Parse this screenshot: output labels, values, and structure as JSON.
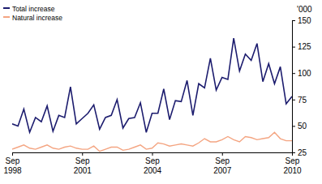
{
  "chart_data": {
    "type": "line",
    "y_label": "'000",
    "categories": [
      "Sep 1998",
      null,
      null,
      null,
      null,
      null,
      null,
      null,
      null,
      null,
      null,
      null,
      "Sep 2001",
      null,
      null,
      null,
      null,
      null,
      null,
      null,
      null,
      null,
      null,
      null,
      "Sep 2004",
      null,
      null,
      null,
      null,
      null,
      null,
      null,
      null,
      null,
      null,
      null,
      "Sep 2007",
      null,
      null,
      null,
      null,
      null,
      null,
      null,
      null,
      null,
      null,
      null,
      "Sep 2010"
    ],
    "series": [
      {
        "name": "Total increase",
        "color": "#1c1c6e",
        "values": [
          52,
          50,
          66,
          44,
          58,
          54,
          69,
          45,
          60,
          58,
          87,
          52,
          57,
          62,
          70,
          47,
          58,
          60,
          75,
          48,
          57,
          58,
          72,
          44,
          62,
          62,
          85,
          56,
          74,
          73,
          93,
          60,
          90,
          86,
          114,
          84,
          96,
          94,
          133,
          102,
          118,
          112,
          128,
          92,
          109,
          90,
          106,
          71,
          78
        ]
      },
      {
        "name": "Natural increase",
        "color": "#f4a582",
        "values": [
          28,
          30,
          32,
          29,
          28,
          30,
          32,
          29,
          28,
          30,
          31,
          29,
          28,
          28,
          31,
          26,
          28,
          30,
          30,
          27,
          28,
          30,
          32,
          28,
          29,
          34,
          33,
          31,
          32,
          33,
          32,
          31,
          34,
          38,
          35,
          35,
          37,
          40,
          37,
          35,
          40,
          39,
          37,
          38,
          39,
          44,
          38,
          36,
          36
        ]
      }
    ],
    "ylim": [
      25,
      150
    ],
    "yticks": [
      25,
      50,
      75,
      100,
      125,
      150
    ],
    "grid": false,
    "legend": "upper left"
  }
}
